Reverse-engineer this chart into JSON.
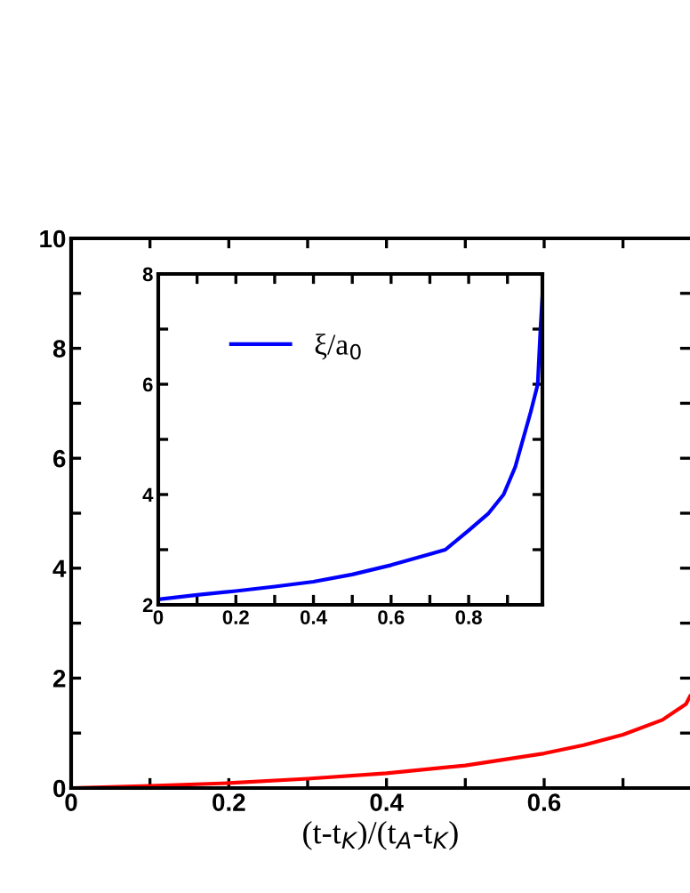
{
  "chart_data": [
    {
      "type": "line",
      "xlabel": "(t-t$_{K}$)/(t$_{A}$-t$_{K}$)",
      "xlim": [
        0,
        0.785
      ],
      "ylim": [
        0,
        10
      ],
      "xticks": [
        0,
        {
          "value": 0.1,
          "label": null
        },
        0.2,
        {
          "value": 0.3,
          "label": null
        },
        0.4,
        {
          "value": 0.5,
          "label": null
        },
        0.6,
        {
          "value": 0.7,
          "label": null
        }
      ],
      "yticks": [
        0,
        {
          "value": 1,
          "label": null
        },
        2,
        {
          "value": 3,
          "label": null
        },
        4,
        {
          "value": 5,
          "label": null
        },
        6,
        {
          "value": 7,
          "label": null
        },
        8,
        {
          "value": 9,
          "label": null
        },
        10
      ],
      "grid": false,
      "legend": false,
      "series": [
        {
          "color": "#ff0000",
          "x": [
            0,
            0.1,
            0.2,
            0.3,
            0.4,
            0.5,
            0.6,
            0.65,
            0.7,
            0.75,
            0.78,
            0.785
          ],
          "values": [
            0,
            0.04,
            0.09,
            0.17,
            0.27,
            0.41,
            0.63,
            0.78,
            0.97,
            1.24,
            1.53,
            1.67
          ]
        }
      ]
    },
    {
      "type": "line",
      "xlim": [
        0,
        0.99
      ],
      "ylim": [
        2,
        8
      ],
      "xticks": [
        0,
        {
          "value": 0.1,
          "label": null
        },
        0.2,
        {
          "value": 0.3,
          "label": null
        },
        0.4,
        {
          "value": 0.5,
          "label": null
        },
        0.6,
        {
          "value": 0.7,
          "label": null
        },
        0.8,
        {
          "value": 0.9,
          "label": null
        }
      ],
      "yticks": [
        2,
        {
          "value": 3,
          "label": null
        },
        4,
        {
          "value": 5,
          "label": null
        },
        6,
        {
          "value": 7,
          "label": null
        },
        8
      ],
      "grid": false,
      "legend": "top left",
      "series": [
        {
          "name": "ξ/a$_{0}$",
          "color": "#0000ff",
          "x": [
            0,
            0.1,
            0.2,
            0.3,
            0.4,
            0.5,
            0.6,
            0.7,
            0.74,
            0.8,
            0.85,
            0.89,
            0.92,
            0.94,
            0.96,
            0.978,
            0.985,
            0.99
          ],
          "values": [
            2.1,
            2.18,
            2.25,
            2.33,
            2.42,
            2.55,
            2.72,
            2.92,
            3.0,
            3.35,
            3.65,
            4.0,
            4.5,
            5.0,
            5.5,
            6.0,
            7.0,
            7.6
          ]
        }
      ]
    }
  ]
}
